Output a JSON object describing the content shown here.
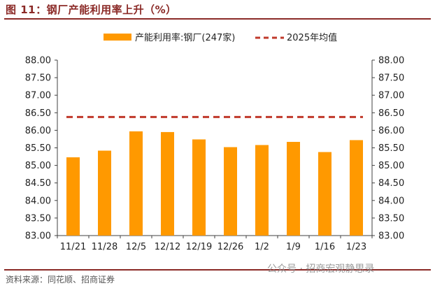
{
  "figure_title": "图 11：钢厂产能利用率上升（%）",
  "source": "资料来源：同花顺、招商证券",
  "watermark": "公众号 · 招商宏观静思录",
  "colors": {
    "bar": "#FF9900",
    "ref_line": "#C0392B",
    "title": "#8B2A27",
    "axis": "#404040"
  },
  "chart_data": {
    "type": "bar",
    "title": "",
    "categories": [
      "11/21",
      "11/28",
      "12/5",
      "12/12",
      "12/19",
      "12/26",
      "1/2",
      "1/9",
      "1/16",
      "1/23"
    ],
    "series": [
      {
        "name": "产能利用率:钢厂(247家)",
        "kind": "bar",
        "values": [
          85.23,
          85.42,
          85.97,
          85.95,
          85.74,
          85.52,
          85.58,
          85.67,
          85.38,
          85.72
        ]
      },
      {
        "name": "2025年均值",
        "kind": "line-dashed",
        "value": 86.38
      }
    ],
    "ylim": [
      83.0,
      88.0
    ],
    "yticks": [
      "83.00",
      "83.50",
      "84.00",
      "84.50",
      "85.00",
      "85.50",
      "86.00",
      "86.50",
      "87.00",
      "87.50",
      "88.00"
    ],
    "y2ticks": [
      "83.00",
      "83.50",
      "84.00",
      "84.50",
      "85.00",
      "85.50",
      "86.00",
      "86.50",
      "87.00",
      "87.50",
      "88.00"
    ],
    "xlabel": "",
    "ylabel": "",
    "grid": false,
    "legend_position": "top-center"
  }
}
